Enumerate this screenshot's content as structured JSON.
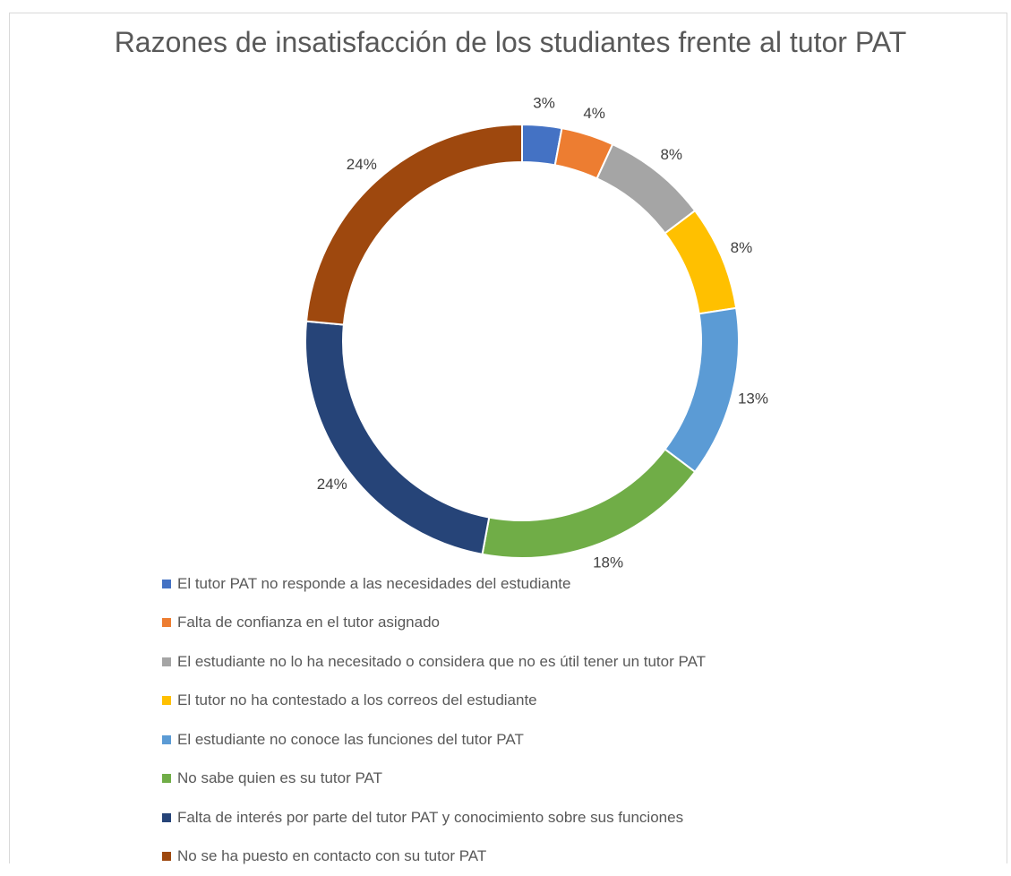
{
  "chart_data": {
    "type": "donut",
    "title": "Razones de insatisfacción de los studiantes frente al tutor PAT",
    "categories": [
      "El tutor PAT no responde a las necesidades del estudiante",
      "Falta de confianza en el tutor asignado",
      "El estudiante no lo ha necesitado o considera que no es útil tener un tutor PAT",
      "El tutor no ha contestado a los correos del estudiante",
      "El estudiante no conoce las funciones del tutor PAT",
      "No sabe quien es su tutor PAT",
      "Falta de interés por parte del tutor PAT y conocimiento sobre sus funciones",
      "No se ha puesto en contacto con su tutor PAT"
    ],
    "values": [
      3,
      4,
      8,
      8,
      13,
      18,
      24,
      24
    ],
    "value_labels": [
      "3%",
      "4%",
      "8%",
      "8%",
      "13%",
      "18%",
      "24%",
      "24%"
    ],
    "colors": [
      "#4472c4",
      "#ed7d31",
      "#a5a5a5",
      "#ffc000",
      "#5b9bd5",
      "#70ad47",
      "#264478",
      "#9e480e"
    ],
    "legend": "bottom"
  }
}
